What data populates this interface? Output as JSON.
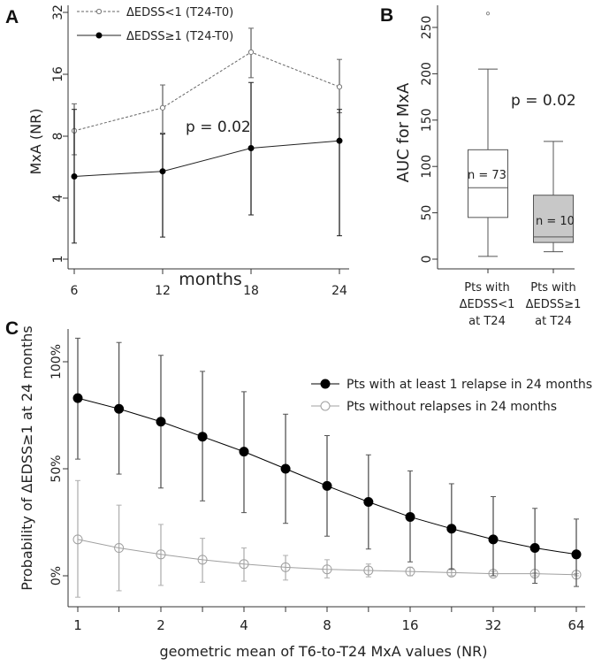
{
  "chart_data": [
    {
      "panel": "A",
      "type": "line",
      "ylabel": "MxA (NR)",
      "xlabel": "months",
      "yscale": "log2",
      "yticks": [
        1,
        4,
        8,
        16,
        32
      ],
      "x": [
        6,
        12,
        18,
        24
      ],
      "annotation": "p = 0.02",
      "legend_position": "top-left",
      "series": [
        {
          "name": "ΔEDSS<1 (T24-T0)",
          "style": "dashed-open",
          "color": "#777777",
          "values": [
            8.5,
            11.0,
            20.5,
            13.9
          ],
          "upper": [
            11.5,
            14.2,
            26.8,
            18.9
          ],
          "lower": [
            6.5,
            8.3,
            15.4,
            10.4
          ]
        },
        {
          "name": "ΔEDSS≥1 (T24-T0)",
          "style": "solid-filled",
          "color": "#111111",
          "values": [
            5.1,
            5.4,
            7.0,
            7.6
          ],
          "upper": [
            10.8,
            8.2,
            14.6,
            10.8
          ],
          "lower": [
            1.44,
            1.65,
            2.73,
            1.7
          ]
        }
      ]
    },
    {
      "panel": "B",
      "type": "box",
      "ylabel": "AUC for MxA",
      "ylim": [
        0,
        260
      ],
      "yticks": [
        0,
        50,
        100,
        150,
        200,
        250
      ],
      "annotation": "p = 0.02",
      "groups": [
        {
          "label": [
            "Pts with",
            "ΔEDSS<1",
            "at T24"
          ],
          "n": "n = 73",
          "fill": "#ffffff",
          "min": 3,
          "q1": 45,
          "median": 77,
          "q3": 118,
          "max": 205,
          "outliers": [
            265
          ]
        },
        {
          "label": [
            "Pts with",
            "ΔEDSS≥1",
            "at T24"
          ],
          "n": "n = 10",
          "fill": "#c8c8c8",
          "min": 8,
          "q1": 18,
          "median": 24,
          "q3": 69,
          "max": 127,
          "outliers": []
        }
      ]
    },
    {
      "panel": "C",
      "type": "line",
      "ylabel": "Probability of  ΔEDSS≥1 at 24 months",
      "xlabel": "geometric mean of T6-to-T24 MxA values (NR)",
      "xscale": "log2",
      "xticks": [
        1,
        2,
        4,
        8,
        16,
        32,
        64
      ],
      "yticks": [
        "0%",
        "50%",
        "100%"
      ],
      "ylim": [
        -15,
        115
      ],
      "legend_position": "top-right",
      "x": [
        1,
        1.41,
        2,
        2.83,
        4,
        5.66,
        8,
        11.3,
        16,
        22.6,
        32,
        45.3,
        64
      ],
      "series": [
        {
          "name": "Pts with at least 1 relapse in 24 months",
          "color": "#000000",
          "errcolor": "#555555",
          "marker": "filled",
          "values": [
            83,
            78,
            72,
            65,
            58,
            50,
            42,
            34.5,
            27.5,
            22,
            17,
            13,
            10
          ],
          "upper": [
            111,
            109,
            103,
            95.5,
            86,
            75.5,
            65.5,
            56.5,
            49,
            43,
            37,
            31.5,
            26.5
          ],
          "lower": [
            54.5,
            47.5,
            41,
            35,
            29.5,
            24.5,
            18.5,
            12.5,
            6.5,
            3,
            0,
            -3.5,
            -5
          ]
        },
        {
          "name": "Pts without relapses in 24 months",
          "color": "#a0a0a0",
          "errcolor": "#b0b0b0",
          "marker": "open",
          "values": [
            17,
            13,
            10,
            7.5,
            5.5,
            4,
            3,
            2.5,
            2,
            1.5,
            1,
            1,
            0.5
          ],
          "upper": [
            44.5,
            33,
            24,
            17.5,
            13,
            9.5,
            7.5,
            5.5,
            4,
            3,
            2,
            1.5,
            1
          ],
          "lower": [
            -10,
            -7,
            -4.5,
            -3,
            -2.5,
            -2,
            -1,
            -0.5,
            0,
            0,
            0,
            0,
            0
          ]
        }
      ]
    }
  ],
  "panels": {
    "a": "A",
    "b": "B",
    "c": "C"
  }
}
